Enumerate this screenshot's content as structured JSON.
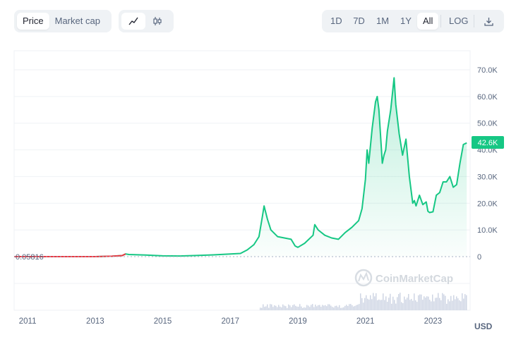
{
  "toolbar": {
    "metric_tabs": [
      {
        "label": "Price",
        "active": true
      },
      {
        "label": "Market cap",
        "active": false
      }
    ],
    "chart_style": [
      "line-chart-icon",
      "candlestick-icon"
    ],
    "ranges": [
      {
        "label": "1D",
        "active": false
      },
      {
        "label": "7D",
        "active": false
      },
      {
        "label": "1M",
        "active": false
      },
      {
        "label": "1Y",
        "active": false
      },
      {
        "label": "All",
        "active": true
      }
    ],
    "log_label": "LOG",
    "download_icon": "download-icon"
  },
  "watermark": "CoinMarketCap",
  "currency": "USD",
  "current_price_label": "42.6K",
  "min_price_label": "0.05816",
  "colors": {
    "up": "#16c784",
    "down": "#ea3943",
    "badge": "#16c784"
  },
  "chart_data": {
    "type": "area",
    "y_ticks": [
      0,
      10000,
      20000,
      30000,
      40000,
      50000,
      60000,
      70000
    ],
    "y_tick_labels": [
      "0",
      "10.0K",
      "20.0K",
      "30.0K",
      "40.0K",
      "50.0K",
      "60.0K",
      "70.0K"
    ],
    "x_ticks": [
      2011,
      2013,
      2015,
      2017,
      2019,
      2021,
      2023
    ],
    "x_tick_labels": [
      "2011",
      "2013",
      "2015",
      "2017",
      "2019",
      "2021",
      "2023"
    ],
    "xlim": [
      2010.6,
      2024.1
    ],
    "ylim": [
      0,
      70000
    ],
    "grid": true,
    "series": [
      {
        "x": [
          2010.6,
          2011.0,
          2011.5,
          2012.0,
          2012.5,
          2013.0,
          2013.3,
          2013.5,
          2013.8,
          2013.9,
          2014.0,
          2014.5,
          2015.0,
          2015.5,
          2016.0,
          2016.5,
          2017.0,
          2017.3,
          2017.5,
          2017.7,
          2017.85,
          2017.95,
          2018.0,
          2018.1,
          2018.2,
          2018.4,
          2018.6,
          2018.8,
          2018.92,
          2019.0,
          2019.2,
          2019.45,
          2019.5,
          2019.6,
          2019.8,
          2020.0,
          2020.2,
          2020.4,
          2020.6,
          2020.8,
          2020.9,
          2021.0,
          2021.05,
          2021.1,
          2021.2,
          2021.3,
          2021.35,
          2021.4,
          2021.5,
          2021.55,
          2021.6,
          2021.65,
          2021.75,
          2021.85,
          2021.9,
          2022.0,
          2022.1,
          2022.2,
          2022.3,
          2022.4,
          2022.45,
          2022.5,
          2022.6,
          2022.7,
          2022.8,
          2022.85,
          2022.9,
          2023.0,
          2023.1,
          2023.2,
          2023.3,
          2023.4,
          2023.5,
          2023.6,
          2023.7,
          2023.8,
          2023.9,
          2024.0
        ],
        "y": [
          0.06,
          1,
          5,
          6,
          8,
          13,
          100,
          150,
          400,
          1000,
          800,
          600,
          300,
          230,
          430,
          650,
          1000,
          1200,
          2500,
          4500,
          7500,
          15000,
          19000,
          14000,
          10000,
          7500,
          7000,
          6500,
          4000,
          3500,
          5000,
          8000,
          12000,
          10000,
          8000,
          7000,
          6500,
          9000,
          11000,
          13500,
          18000,
          29000,
          40000,
          35000,
          48000,
          58000,
          60000,
          55000,
          35000,
          38000,
          40000,
          47000,
          55000,
          67000,
          57000,
          46000,
          38000,
          44000,
          30000,
          20000,
          21000,
          19000,
          23000,
          19500,
          20500,
          17000,
          16500,
          16800,
          23000,
          24000,
          28000,
          28000,
          30000,
          26000,
          27000,
          35000,
          42000,
          42600
        ]
      }
    ]
  }
}
